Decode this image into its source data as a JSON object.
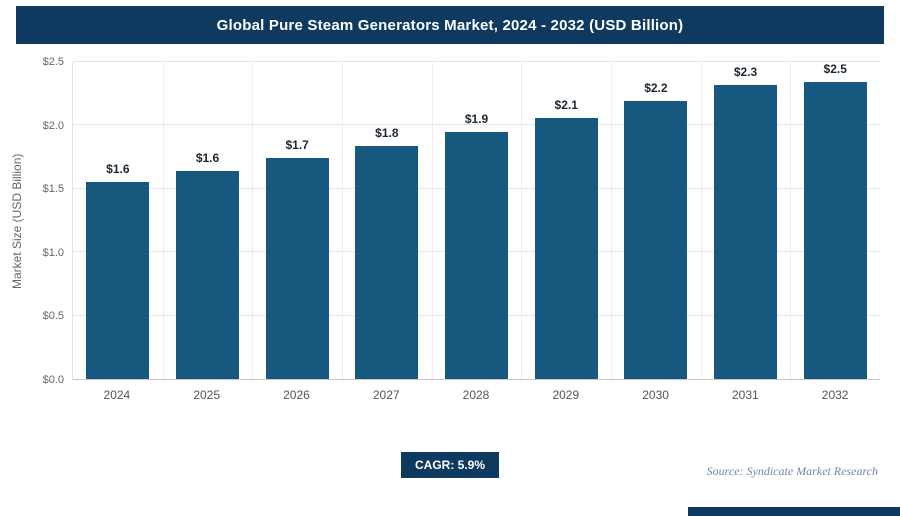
{
  "header": {
    "title": "Global Pure Steam Generators Market, 2024 - 2032 (USD Billion)"
  },
  "colors": {
    "navy": "#0e3a5f",
    "bar": "#16587e",
    "source": "#6e87a3"
  },
  "chart_data": {
    "type": "bar",
    "title": "Global Pure Steam Generators Market, 2024 - 2032 (USD Billion)",
    "categories": [
      "2024",
      "2025",
      "2026",
      "2027",
      "2028",
      "2029",
      "2030",
      "2031",
      "2032"
    ],
    "values": [
      1.55,
      1.64,
      1.74,
      1.84,
      1.95,
      2.06,
      2.19,
      2.32,
      2.45
    ],
    "value_labels": [
      "$1.6",
      "$1.6",
      "$1.7",
      "$1.8",
      "$1.9",
      "$2.1",
      "$2.2",
      "$2.3",
      "$2.5"
    ],
    "xlabel": "",
    "ylabel": "Market Size (USD Billion)",
    "ylim": [
      0,
      2.5
    ],
    "yticks": [
      "$0.0",
      "$0.5",
      "$1.0",
      "$1.5",
      "$2.0",
      "$2.5"
    ],
    "grid": true,
    "legend": "none"
  },
  "footer": {
    "cagr_label": "CAGR: 5.9%",
    "source": "Source: Syndicate Market Research"
  }
}
